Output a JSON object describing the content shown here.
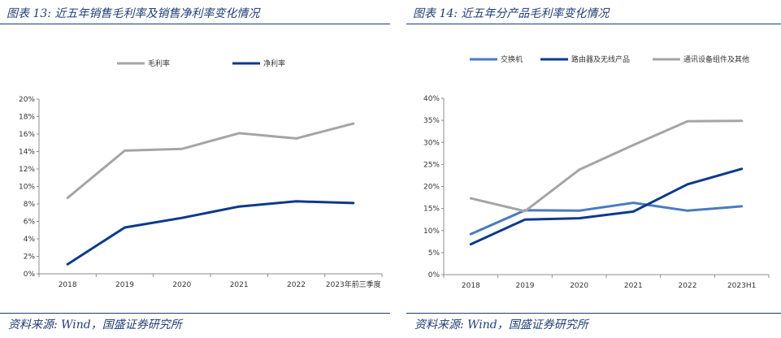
{
  "charts": [
    {
      "figure_title": "图表 13:  近五年销售毛利率及销售净利率变化情况",
      "source": "资料来源:  Wind，国盛证券研究所",
      "chart_data": {
        "type": "line",
        "categories": [
          "2018",
          "2019",
          "2020",
          "2021",
          "2022",
          "2023年前三季度"
        ],
        "series": [
          {
            "name": "毛利率",
            "values": [
              8.7,
              14.1,
              14.3,
              16.1,
              15.5,
              17.2
            ],
            "color": "#a5a5a5"
          },
          {
            "name": "净利率",
            "values": [
              1.1,
              5.3,
              6.4,
              7.7,
              8.3,
              8.1
            ],
            "color": "#0b3a8a"
          }
        ],
        "ylim": [
          0,
          20
        ],
        "yticks": [
          "0%",
          "2%",
          "4%",
          "6%",
          "8%",
          "10%",
          "12%",
          "14%",
          "16%",
          "18%",
          "20%"
        ],
        "legend": "top",
        "grid": false
      }
    },
    {
      "figure_title": "图表 14:  近五年分产品毛利率变化情况",
      "source": "资料来源:  Wind，国盛证券研究所",
      "chart_data": {
        "type": "line",
        "categories": [
          "2018",
          "2019",
          "2020",
          "2021",
          "2022",
          "2023H1"
        ],
        "series": [
          {
            "name": "交换机",
            "values": [
              9.2,
              14.6,
              14.5,
              16.3,
              14.5,
              15.5
            ],
            "color": "#4a7bc0"
          },
          {
            "name": "路由器及无线产品",
            "values": [
              6.9,
              12.5,
              12.8,
              14.3,
              20.5,
              24.0
            ],
            "color": "#0b3a8a"
          },
          {
            "name": "通讯设备组件及其他",
            "values": [
              17.3,
              14.4,
              23.8,
              29.4,
              34.8,
              34.9
            ],
            "color": "#a5a5a5"
          }
        ],
        "ylim": [
          0,
          40
        ],
        "yticks": [
          "0%",
          "5%",
          "10%",
          "15%",
          "20%",
          "25%",
          "30%",
          "35%",
          "40%"
        ],
        "legend": "top",
        "grid": false
      }
    }
  ]
}
